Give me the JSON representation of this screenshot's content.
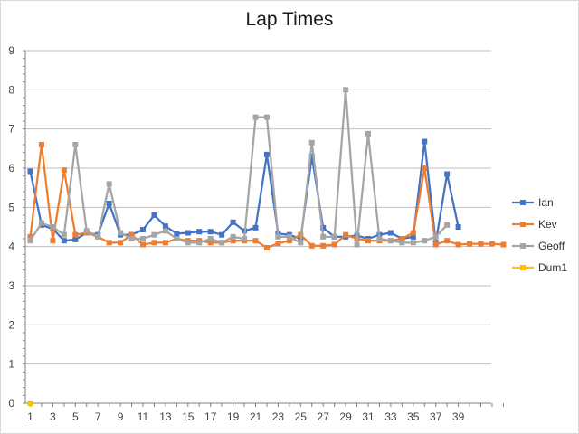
{
  "chart_data": {
    "type": "line",
    "title": "Lap Times",
    "xlabel": "",
    "ylabel": "",
    "ylim": [
      0,
      9
    ],
    "y_ticks": [
      0,
      1,
      2,
      3,
      4,
      5,
      6,
      7,
      8,
      9
    ],
    "x_tick_labels": [
      "1",
      "3",
      "5",
      "7",
      "9",
      "11",
      "13",
      "15",
      "17",
      "19",
      "21",
      "23",
      "25",
      "27",
      "29",
      "31",
      "33",
      "35",
      "37",
      "39"
    ],
    "x": [
      1,
      2,
      3,
      4,
      5,
      6,
      7,
      8,
      9,
      10,
      11,
      12,
      13,
      14,
      15,
      16,
      17,
      18,
      19,
      20,
      21,
      22,
      23,
      24,
      25,
      26,
      27,
      28,
      29,
      30,
      31,
      32,
      33,
      34,
      35,
      36,
      37,
      38,
      39,
      40,
      41,
      42,
      43
    ],
    "grid": "horizontal",
    "legend_position": "right",
    "series": [
      {
        "name": "Ian",
        "color": "#4472c4",
        "values": [
          5.92,
          4.55,
          4.45,
          4.15,
          4.18,
          4.35,
          4.3,
          5.1,
          4.3,
          4.3,
          4.43,
          4.8,
          4.52,
          4.33,
          4.35,
          4.38,
          4.38,
          4.3,
          4.62,
          4.4,
          4.48,
          6.35,
          4.33,
          4.3,
          4.2,
          6.3,
          4.48,
          4.25,
          4.25,
          4.28,
          4.2,
          4.3,
          4.35,
          4.2,
          4.25,
          6.68,
          4.1,
          5.85,
          4.5,
          null,
          null,
          null,
          null
        ]
      },
      {
        "name": "Kev",
        "color": "#ed7d31",
        "values": [
          4.25,
          6.6,
          4.15,
          5.95,
          4.3,
          4.35,
          4.25,
          4.1,
          4.1,
          4.3,
          4.05,
          4.1,
          4.1,
          4.2,
          4.15,
          4.15,
          4.1,
          4.1,
          4.15,
          4.15,
          4.15,
          3.97,
          4.08,
          4.15,
          4.3,
          4.02,
          4.02,
          4.05,
          4.3,
          4.2,
          4.15,
          4.15,
          4.15,
          4.2,
          4.35,
          6.0,
          4.05,
          4.15,
          4.05,
          4.07,
          4.07,
          4.07,
          4.05
        ]
      },
      {
        "name": "Geoff",
        "color": "#a5a5a5",
        "values": [
          4.15,
          4.6,
          4.5,
          4.3,
          6.6,
          4.4,
          4.25,
          5.6,
          4.35,
          4.2,
          4.2,
          4.3,
          4.4,
          4.2,
          4.1,
          4.1,
          4.2,
          4.1,
          4.25,
          4.2,
          7.3,
          7.3,
          4.25,
          4.25,
          4.1,
          6.65,
          4.25,
          4.25,
          8.0,
          4.05,
          6.88,
          4.2,
          4.15,
          4.1,
          4.1,
          4.15,
          4.25,
          4.55,
          null,
          null,
          null,
          null,
          null
        ]
      },
      {
        "name": "Dum1",
        "color": "#ffc000",
        "values": [
          0,
          null,
          null,
          null,
          null,
          null,
          null,
          null,
          null,
          null,
          null,
          null,
          null,
          null,
          null,
          null,
          null,
          null,
          null,
          null,
          null,
          null,
          null,
          null,
          null,
          null,
          null,
          null,
          null,
          null,
          null,
          null,
          null,
          null,
          null,
          null,
          null,
          null,
          null,
          null,
          null,
          null,
          null
        ]
      }
    ]
  }
}
